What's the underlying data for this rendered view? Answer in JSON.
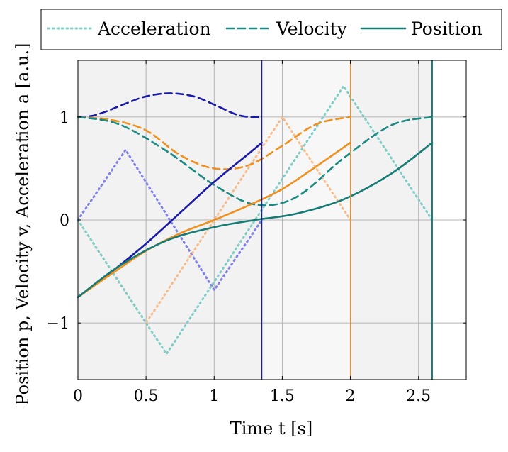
{
  "chart_data": {
    "type": "line",
    "xlabel": "Time t [s]",
    "ylabel": "Position p, Velocity v, Acceleration a [a.u.]",
    "xlim": [
      0,
      2.85
    ],
    "ylim": [
      -1.55,
      1.55
    ],
    "x_ticks": [
      {
        "v": 0,
        "label": "0"
      },
      {
        "v": 0.5,
        "label": "0.5"
      },
      {
        "v": 1,
        "label": "1"
      },
      {
        "v": 1.5,
        "label": "1.5"
      },
      {
        "v": 2,
        "label": "2"
      },
      {
        "v": 2.5,
        "label": "2.5"
      }
    ],
    "y_ticks": [
      {
        "v": -1,
        "label": "−1"
      },
      {
        "v": 0,
        "label": "0"
      },
      {
        "v": 1,
        "label": "1"
      }
    ],
    "grid": true,
    "legend_position": "top",
    "legend": [
      {
        "label": "Acceleration",
        "style": "dotted",
        "color": "#7ecdc6"
      },
      {
        "label": "Velocity",
        "style": "dashed",
        "color": "#1b8a82"
      },
      {
        "label": "Position",
        "style": "solid",
        "color": "#147b75"
      }
    ],
    "shaded_regions": [
      {
        "x": [
          0,
          1.35
        ],
        "color": "#f2f2f2"
      },
      {
        "x": [
          1.35,
          2.0
        ],
        "color": "#f7f7f7"
      },
      {
        "x": [
          2.0,
          2.6
        ],
        "color": "#f2f2f2"
      }
    ],
    "end_lines": [
      {
        "x": 1.35,
        "color": "#1a1aa8"
      },
      {
        "x": 2.0,
        "color": "#f0901e"
      },
      {
        "x": 2.6,
        "color": "#147b75"
      }
    ],
    "series": [
      {
        "group": "blue",
        "kind": "acceleration",
        "style": "dotted",
        "color": "#8080ea",
        "x": [
          0,
          0.35,
          1.0,
          1.35
        ],
        "y": [
          0,
          0.68,
          -0.68,
          0
        ]
      },
      {
        "group": "blue",
        "kind": "velocity",
        "style": "dashed",
        "color": "#1a1aa8",
        "x": [
          0,
          0.1,
          0.2,
          0.35,
          0.5,
          0.675,
          0.85,
          1.0,
          1.15,
          1.25,
          1.35
        ],
        "y": [
          1.0,
          1.01,
          1.05,
          1.13,
          1.2,
          1.23,
          1.2,
          1.12,
          1.03,
          1.0,
          1.0
        ]
      },
      {
        "group": "blue",
        "kind": "position",
        "style": "solid",
        "color": "#1a1aa8",
        "x": [
          0,
          0.25,
          0.5,
          0.75,
          1.0,
          1.25,
          1.35
        ],
        "y": [
          -0.75,
          -0.5,
          -0.23,
          0.07,
          0.37,
          0.64,
          0.75
        ]
      },
      {
        "group": "orange",
        "kind": "acceleration",
        "style": "dotted",
        "color": "#f7bc8a",
        "x": [
          0,
          0.5,
          1.5,
          2.0
        ],
        "y": [
          0,
          -1.0,
          1.0,
          0
        ]
      },
      {
        "group": "orange",
        "kind": "velocity",
        "style": "dashed",
        "color": "#f0901e",
        "x": [
          0,
          0.25,
          0.5,
          0.75,
          1.0,
          1.25,
          1.5,
          1.75,
          2.0
        ],
        "y": [
          1.0,
          0.97,
          0.87,
          0.63,
          0.5,
          0.53,
          0.72,
          0.93,
          1.0
        ]
      },
      {
        "group": "orange",
        "kind": "position",
        "style": "solid",
        "color": "#f0901e",
        "x": [
          0,
          0.25,
          0.5,
          0.75,
          1.0,
          1.25,
          1.5,
          1.75,
          2.0
        ],
        "y": [
          -0.75,
          -0.52,
          -0.3,
          -0.13,
          0.0,
          0.14,
          0.3,
          0.52,
          0.75
        ]
      },
      {
        "group": "teal",
        "kind": "acceleration",
        "style": "dotted",
        "color": "#7ecdc6",
        "x": [
          0,
          0.65,
          1.3,
          1.95,
          2.6
        ],
        "y": [
          0,
          -1.3,
          0,
          1.3,
          0
        ]
      },
      {
        "group": "teal",
        "kind": "velocity",
        "style": "dashed",
        "color": "#1b8a82",
        "x": [
          0,
          0.3,
          0.65,
          1.0,
          1.3,
          1.6,
          1.95,
          2.3,
          2.6
        ],
        "y": [
          1.0,
          0.93,
          0.67,
          0.34,
          0.15,
          0.22,
          0.6,
          0.92,
          1.0
        ]
      },
      {
        "group": "teal",
        "kind": "position",
        "style": "solid",
        "color": "#147b75",
        "x": [
          0,
          0.3,
          0.65,
          1.0,
          1.3,
          1.6,
          1.95,
          2.3,
          2.6
        ],
        "y": [
          -0.75,
          -0.45,
          -0.2,
          -0.07,
          0.0,
          0.06,
          0.2,
          0.45,
          0.75
        ]
      }
    ]
  }
}
